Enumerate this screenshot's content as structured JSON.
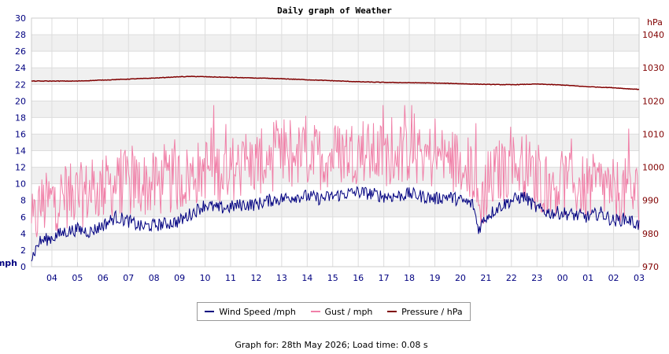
{
  "chart_data": {
    "type": "line",
    "title": "Daily graph of Weather",
    "left_unit": "mph",
    "right_unit": "hPa",
    "ylim_left": [
      0,
      30
    ],
    "left_ticks": [
      0,
      2,
      4,
      6,
      8,
      10,
      12,
      14,
      16,
      18,
      20,
      22,
      24,
      26,
      28,
      30
    ],
    "ylim_right": [
      970,
      1045
    ],
    "right_ticks": [
      970,
      980,
      990,
      1000,
      1010,
      1020,
      1030,
      1040
    ],
    "x_range_hours": [
      3.2,
      27.0
    ],
    "x_tick_labels": [
      "04",
      "05",
      "06",
      "07",
      "08",
      "09",
      "10",
      "11",
      "12",
      "13",
      "14",
      "15",
      "16",
      "17",
      "18",
      "19",
      "20",
      "21",
      "22",
      "23",
      "00",
      "01",
      "02",
      "03"
    ],
    "grid": true,
    "series": [
      {
        "name": "Wind Speed /mph",
        "color": "#000080",
        "axis": "left",
        "x": [
          3.2,
          3.5,
          4,
          4.5,
          5,
          5.5,
          6,
          6.5,
          7,
          7.5,
          8,
          8.5,
          9,
          9.5,
          10,
          10.5,
          11,
          11.5,
          12,
          12.5,
          13,
          13.5,
          14,
          14.5,
          15,
          15.5,
          16,
          16.5,
          17,
          17.5,
          18,
          18.5,
          19,
          19.5,
          20,
          20.5,
          20.7,
          21,
          21.5,
          22,
          22.5,
          23,
          23.5,
          24,
          24.5,
          25,
          25.5,
          26,
          26.5,
          27
        ],
        "values": [
          1,
          3,
          3.5,
          4.2,
          4.5,
          4.2,
          5,
          6,
          5.5,
          4.8,
          5,
          5.2,
          5.5,
          6.5,
          7.5,
          7,
          7.2,
          7.5,
          7.5,
          8,
          8.2,
          8.5,
          8.5,
          8.2,
          8.5,
          8.8,
          9,
          8.8,
          8.5,
          8.5,
          8.8,
          8.5,
          8.2,
          8.5,
          8,
          7.5,
          4.5,
          6,
          7.2,
          8,
          8.5,
          7,
          6.5,
          6.5,
          6.2,
          6,
          6.5,
          5.5,
          5.8,
          5
        ]
      },
      {
        "name": "Gust / mph",
        "color": "#f080a8",
        "axis": "left",
        "x": [
          3.2,
          3.5,
          4,
          4.5,
          5,
          5.5,
          6,
          6.5,
          7,
          7.5,
          8,
          8.5,
          9,
          9.5,
          10,
          10.5,
          11,
          11.5,
          12,
          12.5,
          13,
          13.5,
          14,
          14.5,
          15,
          15.5,
          16,
          16.5,
          17,
          17.5,
          18,
          18.5,
          19,
          19.5,
          20,
          20.5,
          20.7,
          21,
          21.5,
          22,
          22.5,
          23,
          23.5,
          24,
          24.5,
          25,
          25.5,
          26,
          26.5,
          27
        ],
        "values": [
          4,
          7,
          8,
          8.5,
          8.5,
          9,
          9.5,
          10,
          10.2,
          10,
          9.8,
          10.2,
          10.5,
          11,
          12,
          11.5,
          12,
          12,
          12.5,
          13,
          13,
          13.2,
          13.5,
          13.2,
          13.5,
          13.8,
          14,
          13.5,
          13.5,
          13.8,
          14,
          13.5,
          13.2,
          13,
          12.5,
          11.5,
          7,
          9.5,
          11.5,
          12,
          12.5,
          10.5,
          10,
          10,
          9.8,
          9.5,
          9.8,
          9,
          9.2,
          8.5
        ]
      },
      {
        "name": "Pressure / hPa",
        "color": "#800000",
        "axis": "right",
        "x": [
          3.2,
          4,
          5,
          6,
          7,
          8,
          9,
          9.5,
          10,
          11,
          12,
          13,
          14,
          15,
          16,
          17,
          18,
          19,
          20,
          21,
          22,
          23,
          24,
          25,
          26,
          26.5,
          27
        ],
        "values": [
          1026,
          1026,
          1026,
          1026.3,
          1026.6,
          1026.9,
          1027.3,
          1027.4,
          1027.3,
          1027.1,
          1026.9,
          1026.7,
          1026.4,
          1026.1,
          1025.8,
          1025.6,
          1025.5,
          1025.4,
          1025.2,
          1025,
          1024.9,
          1025.1,
          1024.8,
          1024.3,
          1024,
          1023.7,
          1023.5
        ]
      }
    ]
  },
  "footer": "Graph for: 28th May 2026; Load time: 0.08 s"
}
